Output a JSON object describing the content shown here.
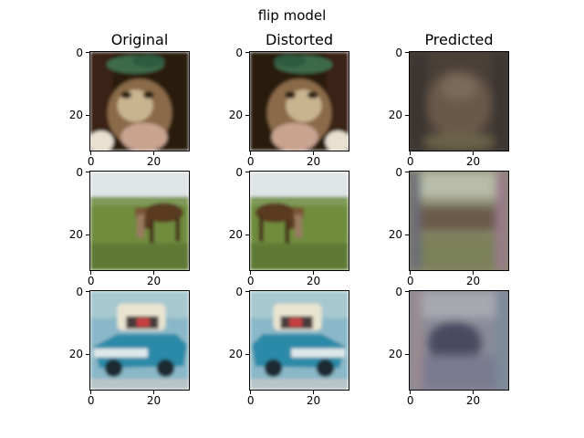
{
  "figure": {
    "suptitle": "flip model",
    "columns": [
      "Original",
      "Distorted",
      "Predicted"
    ]
  },
  "chart_data": {
    "type": "image-grid",
    "title": "flip model",
    "columns": [
      "Original",
      "Distorted",
      "Predicted"
    ],
    "rows": 3,
    "xticks": [
      "0",
      "20"
    ],
    "yticks": [
      "0",
      "20"
    ],
    "image_size": [
      32,
      32
    ],
    "images": [
      {
        "row": 0,
        "col": 0,
        "content": "cat with green hat"
      },
      {
        "row": 0,
        "col": 1,
        "content": "cat with green hat (horizontally flipped)"
      },
      {
        "row": 0,
        "col": 2,
        "content": "blurry dark brown reconstruction"
      },
      {
        "row": 1,
        "col": 0,
        "content": "brown horse on grass"
      },
      {
        "row": 1,
        "col": 1,
        "content": "brown horse on grass (horizontally flipped)"
      },
      {
        "row": 1,
        "col": 2,
        "content": "blurry green-brown reconstruction"
      },
      {
        "row": 2,
        "col": 0,
        "content": "blue and white car"
      },
      {
        "row": 2,
        "col": 1,
        "content": "blue and white car (horizontally flipped)"
      },
      {
        "row": 2,
        "col": 2,
        "content": "blurry blue-gray reconstruction"
      }
    ],
    "colors": {
      "cat_bg": "#2b1a10",
      "cat_fur": "#8a6a48",
      "cat_hat": "#3e6b4a",
      "grass": "#6f8c3e",
      "sky": "#dfe4e6",
      "horse": "#5a3a24",
      "car_bg": "#8ab8c8",
      "car_body": "#2a8aa8",
      "car_top": "#e8e4d0",
      "pred1": "#5a4a3c",
      "pred2": "#9a9a78",
      "pred3": "#8a8a98"
    }
  }
}
